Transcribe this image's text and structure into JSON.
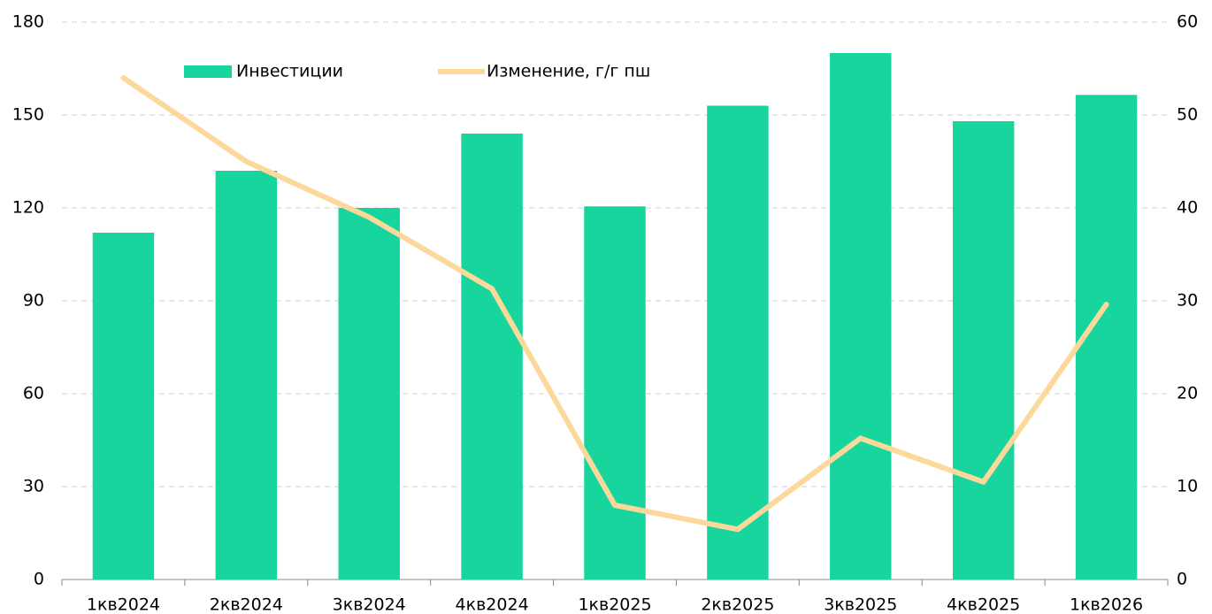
{
  "chart_data": {
    "type": "bar",
    "categories": [
      "1кв2024",
      "2кв2024",
      "3кв2024",
      "4кв2024",
      "1кв2025",
      "2кв2025",
      "3кв2025",
      "4кв2025",
      "1кв2026"
    ],
    "series": [
      {
        "name": "Инвестиции",
        "type": "bar",
        "color": "#18d59e",
        "values": [
          112,
          132,
          120,
          144,
          120.5,
          153,
          170,
          148,
          156.5
        ]
      },
      {
        "name": "Изменение, г/г пш",
        "type": "line",
        "axis": "y2",
        "color": "#fcd99a",
        "values": [
          54,
          45,
          39,
          31.3,
          8,
          5.4,
          15.2,
          10.5,
          29.6
        ]
      }
    ],
    "ylim": [
      0,
      180
    ],
    "yticks": [
      0,
      30,
      60,
      90,
      120,
      150,
      180
    ],
    "y2lim": [
      0,
      60
    ],
    "y2ticks": [
      0,
      10,
      20,
      30,
      40,
      50,
      60
    ],
    "grid": true
  }
}
